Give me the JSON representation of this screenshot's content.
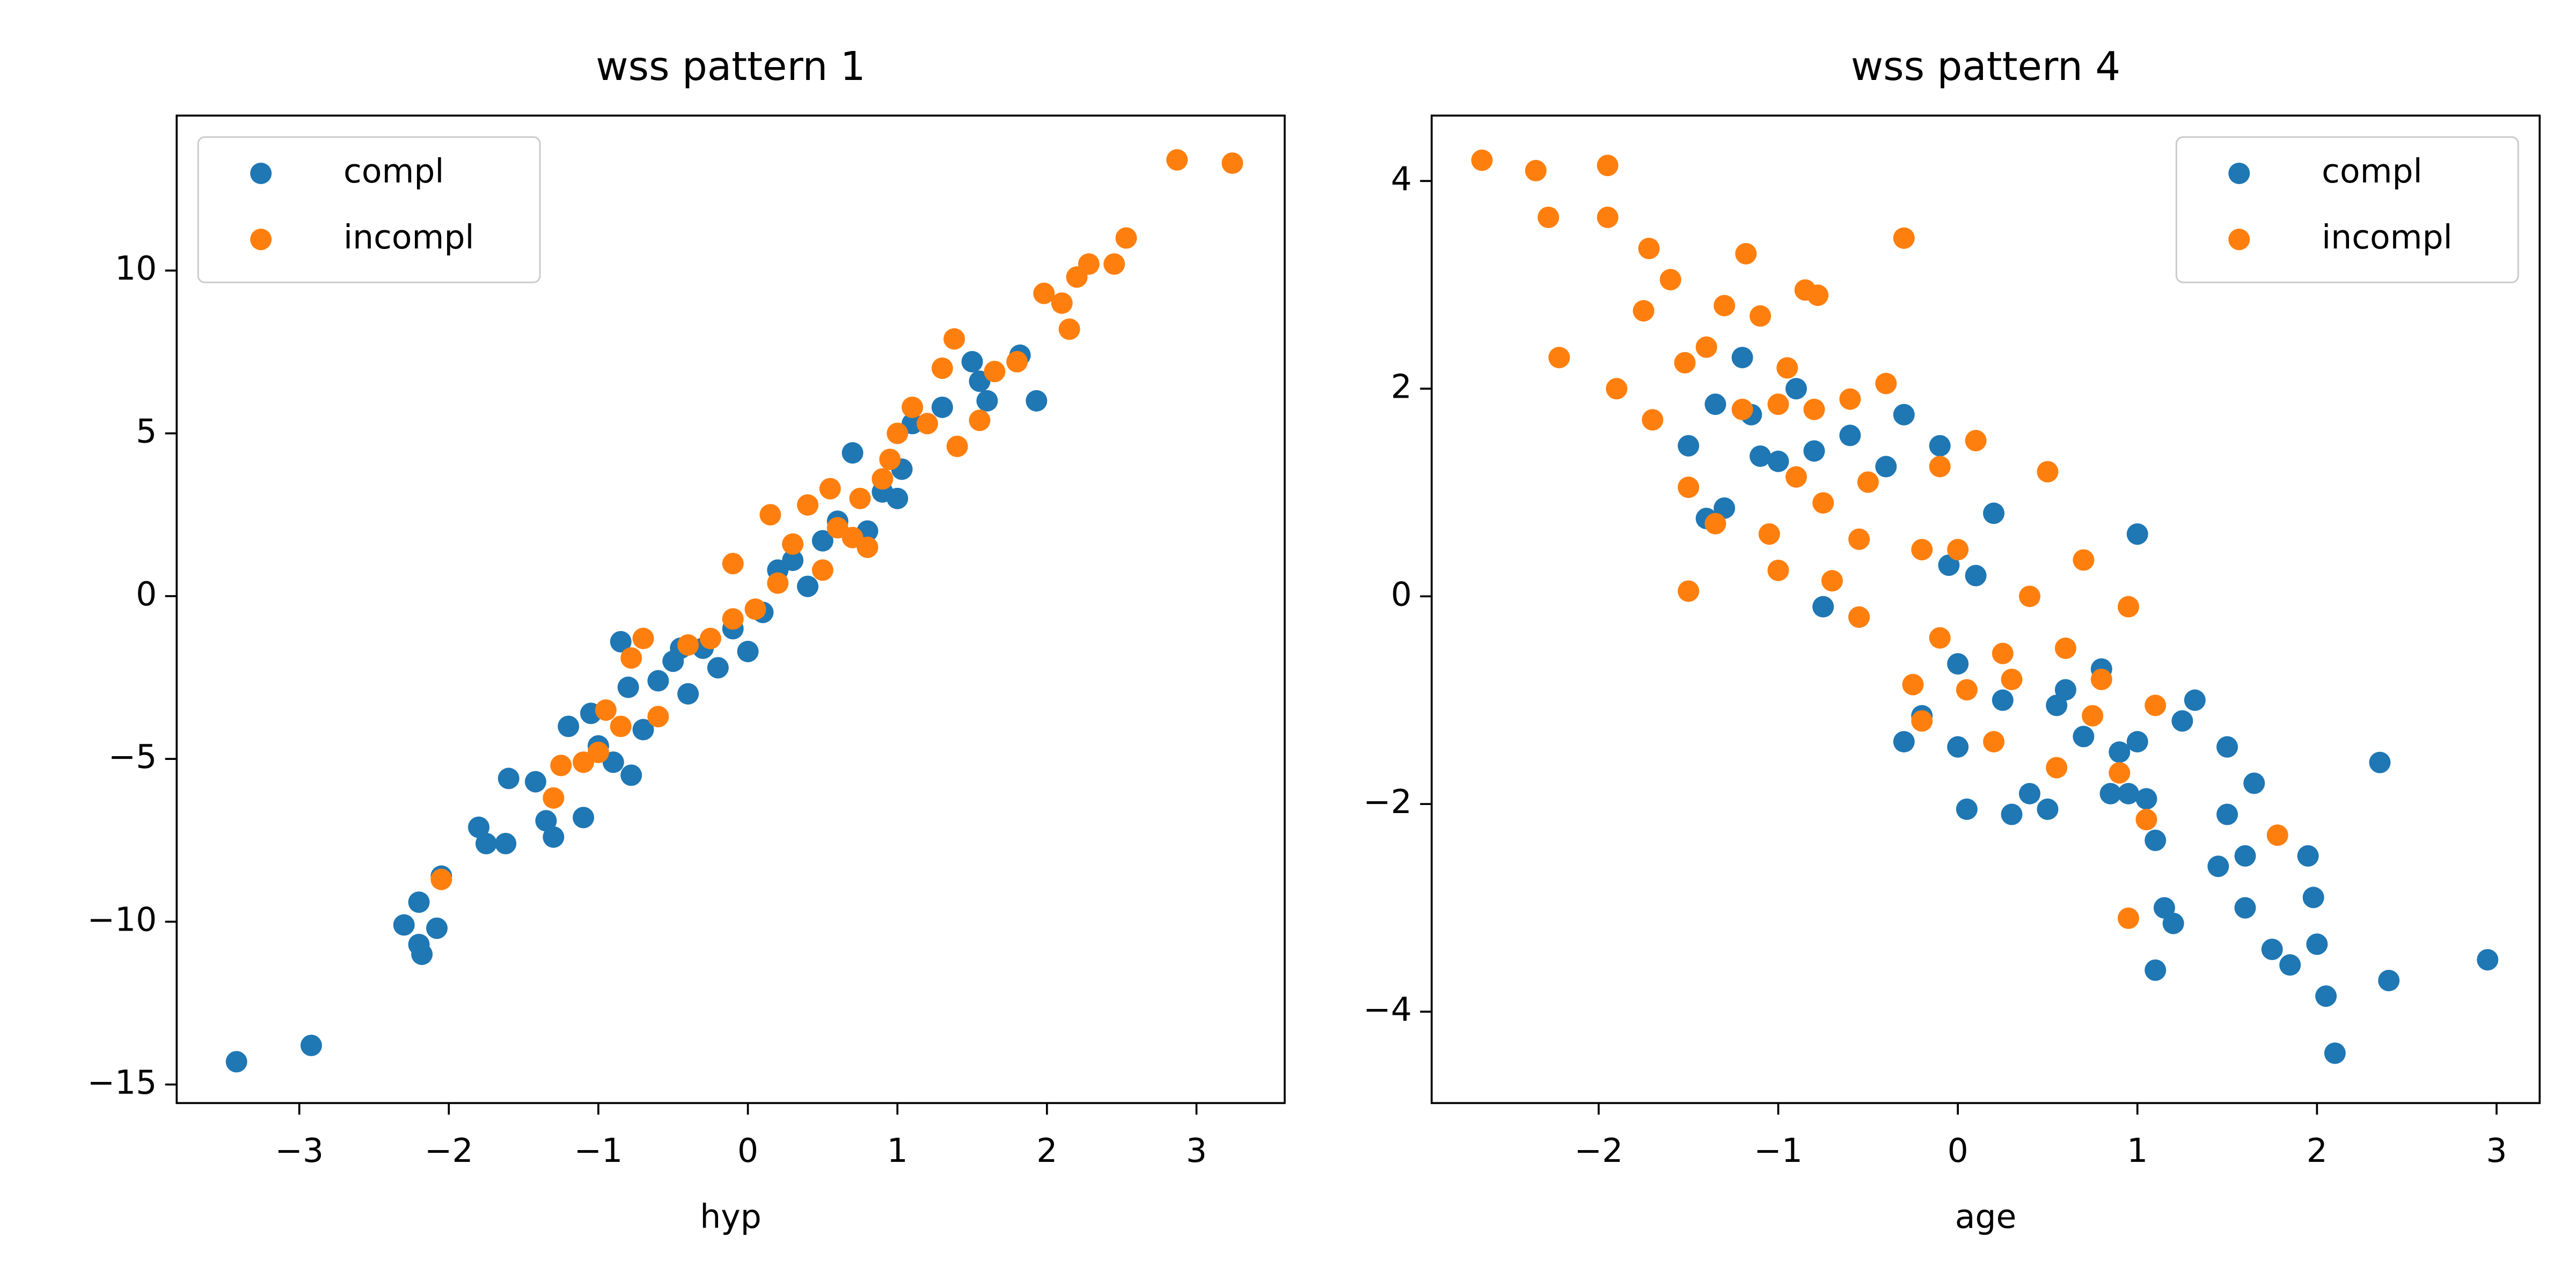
{
  "chart_data": [
    {
      "type": "scatter",
      "title": "wss pattern 1",
      "x_label": "hyp",
      "legend": "upper left",
      "xlim": [
        -3.82,
        3.59
      ],
      "ylim": [
        -15.57,
        14.76
      ],
      "xticks": [
        {
          "value": -3,
          "label": "−3"
        },
        {
          "value": -2,
          "label": "−2"
        },
        {
          "value": -1,
          "label": "−1"
        },
        0,
        1,
        2,
        3
      ],
      "yticks": [
        {
          "value": -15,
          "label": "−15"
        },
        {
          "value": -10,
          "label": "−10"
        },
        {
          "value": -5,
          "label": "−5"
        },
        0,
        5,
        10
      ],
      "series": [
        {
          "name": "compl",
          "color": "#1f77b4",
          "x": [
            -3.42,
            -2.92,
            -2.3,
            -2.2,
            -2.18,
            -2.2,
            -2.08,
            -2.05,
            -1.8,
            -1.75,
            -1.62,
            -1.6,
            -1.42,
            -1.35,
            -1.3,
            -1.2,
            -1.1,
            -1.0,
            -0.9,
            -0.78,
            -0.8,
            -0.7,
            -0.6,
            -0.5,
            -0.4,
            -0.3,
            -0.2,
            -0.1,
            0.0,
            0.1,
            0.2,
            0.3,
            0.4,
            0.5,
            0.6,
            0.7,
            0.8,
            0.9,
            1.0,
            1.03,
            1.1,
            1.3,
            1.5,
            1.55,
            1.6,
            1.82,
            1.93,
            -0.85,
            -1.05,
            -0.45
          ],
          "values": [
            -14.3,
            -13.8,
            -10.1,
            -10.7,
            -11.0,
            -9.4,
            -10.2,
            -8.6,
            -7.1,
            -7.6,
            -7.6,
            -5.6,
            -5.7,
            -6.9,
            -7.4,
            -4.0,
            -6.8,
            -4.6,
            -5.1,
            -5.5,
            -2.8,
            -4.1,
            -2.6,
            -2.0,
            -3.0,
            -1.6,
            -2.2,
            -1.0,
            -1.7,
            -0.5,
            0.8,
            1.1,
            0.3,
            1.7,
            2.3,
            4.4,
            2.0,
            3.2,
            3.0,
            3.9,
            5.3,
            5.8,
            7.2,
            6.6,
            6.0,
            7.4,
            6.0,
            -1.4,
            -3.6,
            -1.6
          ]
        },
        {
          "name": "incompl",
          "color": "#ff7f0e",
          "x": [
            -2.05,
            -1.3,
            -1.25,
            -1.1,
            -1.0,
            -0.95,
            -0.85,
            -0.78,
            -0.7,
            -0.6,
            -0.4,
            -0.25,
            -0.1,
            -0.1,
            0.05,
            0.15,
            0.3,
            0.4,
            0.5,
            0.6,
            0.7,
            0.75,
            0.8,
            0.9,
            1.0,
            1.1,
            1.2,
            1.3,
            1.38,
            1.4,
            1.55,
            1.65,
            1.8,
            1.98,
            2.1,
            2.15,
            2.2,
            2.28,
            2.45,
            2.53,
            2.87,
            3.24,
            0.95,
            0.55,
            0.2
          ],
          "values": [
            -8.7,
            -6.2,
            -5.2,
            -5.1,
            -4.8,
            -3.5,
            -4.0,
            -1.9,
            -1.3,
            -3.7,
            -1.5,
            -1.3,
            -0.7,
            1.0,
            -0.4,
            2.5,
            1.6,
            2.8,
            0.8,
            2.1,
            1.8,
            3.0,
            1.5,
            3.6,
            5.0,
            5.8,
            5.3,
            7.0,
            7.9,
            4.6,
            5.4,
            6.9,
            7.2,
            9.3,
            9.0,
            8.2,
            9.8,
            10.2,
            10.2,
            11.0,
            13.4,
            13.3,
            4.2,
            3.3,
            0.4
          ]
        }
      ]
    },
    {
      "type": "scatter",
      "title": "wss pattern 4",
      "x_label": "age",
      "legend": "upper right",
      "xlim": [
        -2.93,
        3.24
      ],
      "ylim": [
        -4.88,
        4.63
      ],
      "xticks": [
        {
          "value": -2,
          "label": "−2"
        },
        {
          "value": -1,
          "label": "−1"
        },
        0,
        1,
        2,
        3
      ],
      "yticks": [
        {
          "value": -4,
          "label": "−4"
        },
        {
          "value": -2,
          "label": "−2"
        },
        0,
        2,
        4
      ],
      "series": [
        {
          "name": "compl",
          "color": "#1f77b4",
          "x": [
            -1.5,
            -1.4,
            -1.35,
            -1.3,
            -1.2,
            -1.15,
            -1.1,
            -1.0,
            -0.9,
            -0.8,
            -0.75,
            -0.6,
            -0.55,
            -0.4,
            -0.3,
            -0.3,
            -0.2,
            -0.1,
            -0.05,
            0.0,
            0.05,
            0.1,
            0.2,
            0.25,
            0.3,
            0.4,
            0.5,
            0.55,
            0.6,
            0.7,
            0.8,
            0.85,
            0.9,
            1.0,
            1.0,
            1.05,
            1.1,
            1.1,
            1.15,
            1.2,
            1.25,
            1.32,
            1.45,
            1.5,
            1.5,
            1.6,
            1.6,
            1.65,
            1.75,
            1.85,
            1.95,
            1.98,
            2.0,
            2.05,
            2.1,
            2.35,
            2.4,
            2.95,
            0.95,
            0.0
          ],
          "values": [
            1.45,
            0.75,
            1.85,
            0.85,
            2.3,
            1.75,
            1.35,
            1.3,
            2.0,
            1.4,
            -0.1,
            1.55,
            -0.2,
            1.25,
            1.75,
            -1.4,
            -1.15,
            1.45,
            0.3,
            -0.65,
            -2.05,
            0.2,
            0.8,
            -1.0,
            -2.1,
            -1.9,
            -2.05,
            -1.05,
            -0.9,
            -1.35,
            -0.7,
            -1.9,
            -1.5,
            -1.4,
            0.6,
            -1.95,
            -2.35,
            -3.6,
            -3.0,
            -3.15,
            -1.2,
            -1.0,
            -2.6,
            -2.1,
            -1.45,
            -2.5,
            -3.0,
            -1.8,
            -3.4,
            -3.55,
            -2.5,
            -2.9,
            -3.35,
            -3.85,
            -4.4,
            -1.6,
            -3.7,
            -3.5,
            -1.9,
            -1.45
          ]
        },
        {
          "name": "incompl",
          "color": "#ff7f0e",
          "x": [
            -2.65,
            -2.35,
            -2.28,
            -2.22,
            -1.95,
            -1.95,
            -1.9,
            -1.75,
            -1.72,
            -1.7,
            -1.6,
            -1.52,
            -1.5,
            -1.5,
            -1.4,
            -1.35,
            -1.3,
            -1.2,
            -1.18,
            -1.1,
            -1.05,
            -1.0,
            -1.0,
            -0.95,
            -0.9,
            -0.85,
            -0.8,
            -0.78,
            -0.75,
            -0.7,
            -0.6,
            -0.55,
            -0.5,
            -0.4,
            -0.3,
            -0.25,
            -0.2,
            -0.2,
            -0.1,
            -0.1,
            0.0,
            0.05,
            0.1,
            0.2,
            0.3,
            0.4,
            0.5,
            0.55,
            0.6,
            0.7,
            0.75,
            0.8,
            0.9,
            0.95,
            0.95,
            1.05,
            1.1,
            1.78,
            -0.55,
            0.25
          ],
          "values": [
            4.2,
            4.1,
            3.65,
            2.3,
            4.15,
            3.65,
            2.0,
            2.75,
            3.35,
            1.7,
            3.05,
            2.25,
            1.05,
            0.05,
            2.4,
            0.7,
            2.8,
            1.8,
            3.3,
            2.7,
            0.6,
            0.25,
            1.85,
            2.2,
            1.15,
            2.95,
            1.8,
            2.9,
            0.9,
            0.15,
            1.9,
            0.55,
            1.1,
            2.05,
            3.45,
            -0.85,
            0.45,
            -1.2,
            1.25,
            -0.4,
            0.45,
            -0.9,
            1.5,
            -1.4,
            -0.8,
            0.0,
            1.2,
            -1.65,
            -0.5,
            0.35,
            -1.15,
            -0.8,
            -1.7,
            -0.1,
            -3.1,
            -2.15,
            -1.05,
            -2.3,
            -0.2,
            -0.55
          ]
        }
      ]
    }
  ]
}
